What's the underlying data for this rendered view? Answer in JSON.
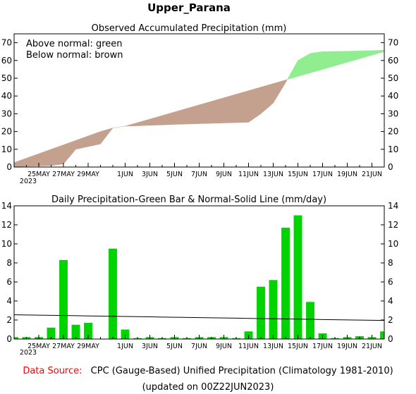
{
  "title": "Upper_Parana",
  "chart_data": [
    {
      "type": "area",
      "title": "Observed Accumulated Precipitation (mm)",
      "legend_lines": [
        "Above normal: green",
        "Below normal: brown"
      ],
      "colors": {
        "above": "#90ee90",
        "below": "#c4a08f"
      },
      "x_ticks": [
        "25MAY",
        "27MAY",
        "29MAY",
        "1JUN",
        "3JUN",
        "5JUN",
        "7JUN",
        "9JUN",
        "11JUN",
        "13JUN",
        "15JUN",
        "17JUN",
        "19JUN",
        "21JUN"
      ],
      "x_year_label": "2023",
      "ylim": [
        0,
        75
      ],
      "y_ticks": [
        0,
        10,
        20,
        30,
        40,
        50,
        60,
        70
      ],
      "x": [
        "23MAY",
        "24MAY",
        "25MAY",
        "26MAY",
        "27MAY",
        "28MAY",
        "29MAY",
        "30MAY",
        "31MAY",
        "1JUN",
        "2JUN",
        "3JUN",
        "4JUN",
        "5JUN",
        "6JUN",
        "7JUN",
        "8JUN",
        "9JUN",
        "10JUN",
        "11JUN",
        "12JUN",
        "13JUN",
        "14JUN",
        "15JUN",
        "16JUN",
        "17JUN",
        "18JUN",
        "19JUN",
        "20JUN",
        "21JUN",
        "22JUN"
      ],
      "series": [
        {
          "name": "Observed",
          "values": [
            0.2,
            0.4,
            0.6,
            0.8,
            1.7,
            10.0,
            11.5,
            13.0,
            22.0,
            23.0,
            23.2,
            23.5,
            23.7,
            24.0,
            24.2,
            24.4,
            24.6,
            24.8,
            25.0,
            25.2,
            30.0,
            36.0,
            47.5,
            60.0,
            64.0,
            65.0,
            65.1,
            65.2,
            65.4,
            65.6,
            65.8
          ]
        },
        {
          "name": "Normal",
          "values": [
            2.5,
            5.0,
            7.5,
            10.0,
            12.5,
            15.0,
            17.5,
            20.0,
            22.0,
            23.0,
            25.0,
            27.0,
            29.0,
            31.0,
            33.0,
            35.0,
            37.0,
            39.0,
            41.0,
            43.0,
            45.0,
            47.0,
            49.0,
            51.0,
            53.0,
            55.0,
            57.0,
            59.0,
            61.0,
            63.0,
            65.0
          ]
        }
      ]
    },
    {
      "type": "bar",
      "title": "Daily Precipitation-Green Bar & Normal-Solid Line (mm/day)",
      "colors": {
        "bar": "#00d400",
        "line": "#000000"
      },
      "x_ticks": [
        "25MAY",
        "27MAY",
        "29MAY",
        "1JUN",
        "3JUN",
        "5JUN",
        "7JUN",
        "9JUN",
        "11JUN",
        "13JUN",
        "15JUN",
        "17JUN",
        "19JUN",
        "21JUN"
      ],
      "x_year_label": "2023",
      "ylim": [
        0,
        14
      ],
      "y_ticks": [
        0,
        2,
        4,
        6,
        8,
        10,
        12,
        14
      ],
      "categories": [
        "23MAY",
        "24MAY",
        "25MAY",
        "26MAY",
        "27MAY",
        "28MAY",
        "29MAY",
        "30MAY",
        "31MAY",
        "1JUN",
        "2JUN",
        "3JUN",
        "4JUN",
        "5JUN",
        "6JUN",
        "7JUN",
        "8JUN",
        "9JUN",
        "10JUN",
        "11JUN",
        "12JUN",
        "13JUN",
        "14JUN",
        "15JUN",
        "16JUN",
        "17JUN",
        "18JUN",
        "19JUN",
        "20JUN",
        "21JUN",
        "22JUN"
      ],
      "series": [
        {
          "name": "Daily Precipitation",
          "values": [
            0.2,
            0.2,
            0.2,
            1.2,
            8.3,
            1.5,
            1.7,
            0.0,
            9.5,
            1.0,
            0.1,
            0.2,
            0.1,
            0.2,
            0.1,
            0.2,
            0.2,
            0.2,
            0.1,
            0.8,
            5.5,
            6.2,
            11.7,
            13.0,
            3.9,
            0.6,
            0.1,
            0.2,
            0.3,
            0.2,
            0.8
          ]
        },
        {
          "name": "Normal",
          "values": [
            2.55,
            2.53,
            2.51,
            2.49,
            2.47,
            2.45,
            2.43,
            2.41,
            2.39,
            2.37,
            2.35,
            2.33,
            2.31,
            2.29,
            2.27,
            2.25,
            2.23,
            2.21,
            2.19,
            2.17,
            2.15,
            2.13,
            2.11,
            2.09,
            2.07,
            2.05,
            2.03,
            2.01,
            1.99,
            1.97,
            1.95
          ]
        }
      ]
    }
  ],
  "footer": {
    "source_label": "Data Source:",
    "source_text": "CPC (Gauge-Based) Unified Precipitation (Climatology 1981-2010)",
    "updated": "(updated on 00Z22JUN2023)",
    "source_label_color": "#ff0000"
  }
}
